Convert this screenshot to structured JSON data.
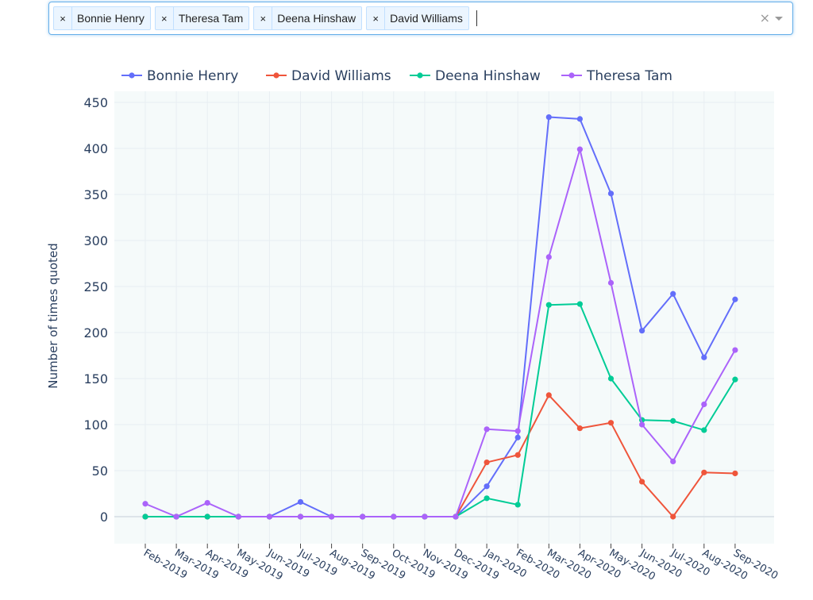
{
  "selector": {
    "tags": [
      {
        "label": "Bonnie Henry",
        "remove_icon": "×"
      },
      {
        "label": "Theresa Tam",
        "remove_icon": "×"
      },
      {
        "label": "Deena Hinshaw",
        "remove_icon": "×"
      },
      {
        "label": "David Williams",
        "remove_icon": "×"
      }
    ],
    "clear_icon": "×",
    "dropdown_icon": "caret-down-icon"
  },
  "chart_data": {
    "type": "line",
    "ylabel": "Number of times quoted",
    "xlabel": "",
    "ylim": [
      -30,
      460
    ],
    "yticks": [
      0,
      50,
      100,
      150,
      200,
      250,
      300,
      350,
      400,
      450
    ],
    "grid": true,
    "legend_position": "top",
    "plot_background": "#f5fafa",
    "categories": [
      "Feb-2019",
      "Mar-2019",
      "Apr-2019",
      "May-2019",
      "Jun-2019",
      "Jul-2019",
      "Aug-2019",
      "Sep-2019",
      "Oct-2019",
      "Nov-2019",
      "Dec-2019",
      "Jan-2020",
      "Feb-2020",
      "Mar-2020",
      "Apr-2020",
      "May-2020",
      "Jun-2020",
      "Jul-2020",
      "Aug-2020",
      "Sep-2020"
    ],
    "series": [
      {
        "name": "Bonnie Henry",
        "color": "#636efa",
        "values": [
          0,
          0,
          0,
          0,
          0,
          16,
          0,
          0,
          0,
          0,
          0,
          33,
          86,
          434,
          432,
          351,
          202,
          242,
          173,
          236
        ]
      },
      {
        "name": "David Williams",
        "color": "#ef553b",
        "values": [
          0,
          0,
          0,
          0,
          0,
          0,
          0,
          0,
          0,
          0,
          0,
          59,
          67,
          132,
          96,
          102,
          38,
          0,
          48,
          47
        ]
      },
      {
        "name": "Deena Hinshaw",
        "color": "#00cc96",
        "values": [
          0,
          0,
          0,
          0,
          0,
          0,
          0,
          0,
          0,
          0,
          0,
          20,
          13,
          230,
          231,
          150,
          105,
          104,
          94,
          149
        ]
      },
      {
        "name": "Theresa Tam",
        "color": "#ab63fa",
        "values": [
          14,
          0,
          15,
          0,
          0,
          0,
          0,
          0,
          0,
          0,
          0,
          95,
          93,
          282,
          399,
          254,
          100,
          60,
          122,
          181
        ]
      }
    ]
  }
}
